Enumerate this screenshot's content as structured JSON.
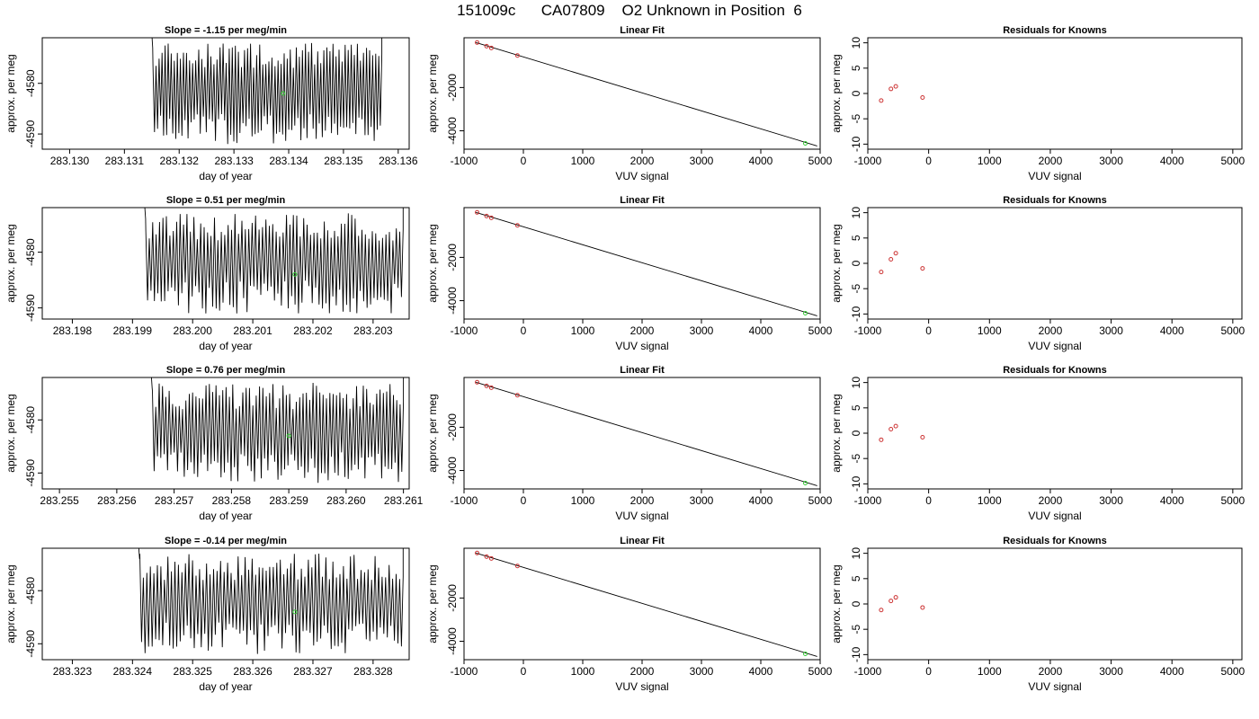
{
  "figure": {
    "title": "151009c      CA07809    O2 Unknown in Position  6"
  },
  "colors": {
    "line": "#000000",
    "known_points": "#cc3333",
    "unknown_point": "#33cc33",
    "axis": "#000000"
  },
  "chart_data": [
    {
      "type": "line",
      "panel": "time-series",
      "row": 0,
      "title": "Slope =  -1.15  per meg/min",
      "xlabel": "day of year",
      "ylabel": "approx. per meg",
      "xlim": [
        283.1295,
        283.1362
      ],
      "ylim": [
        -4593,
        -4571
      ],
      "xticks": [
        "283.130",
        "283.131",
        "283.132",
        "283.133",
        "283.134",
        "283.135",
        "283.136"
      ],
      "xtick_values": [
        283.13,
        283.131,
        283.132,
        283.133,
        283.134,
        283.135,
        283.136
      ],
      "yticks": [
        "-4580",
        "-4590"
      ],
      "ytick_values": [
        -4580,
        -4590
      ],
      "signal_x_range": [
        283.1315,
        283.1357
      ],
      "signal_range": [
        -4593,
        -4571
      ],
      "unknown_point": {
        "x": 283.1339,
        "y": -4582
      }
    },
    {
      "type": "scatter",
      "panel": "linear-fit",
      "row": 0,
      "title": "Linear Fit",
      "xlabel": "VUV signal",
      "ylabel": "approx. per meg",
      "xlim": [
        -1000,
        5000
      ],
      "ylim": [
        -4850,
        300
      ],
      "xticks": [
        "-1000",
        "0",
        "1000",
        "2000",
        "3000",
        "4000",
        "5000"
      ],
      "xtick_values": [
        -1000,
        0,
        1000,
        2000,
        3000,
        4000,
        5000
      ],
      "yticks": [
        "-2000",
        "-4000"
      ],
      "ytick_values": [
        -2000,
        -4000
      ],
      "fit_line": {
        "x": [
          -800,
          4950
        ],
        "y": [
          80,
          -4700
        ]
      },
      "knowns": {
        "x": [
          -780,
          -620,
          -540,
          -100
        ],
        "y": [
          80,
          -90,
          -170,
          -520
        ]
      },
      "unknown_point": {
        "x": 4750,
        "y": -4580
      }
    },
    {
      "type": "scatter",
      "panel": "residuals",
      "row": 0,
      "title": "Residuals for Knowns",
      "xlabel": "VUV signal",
      "ylabel": "approx. per meg",
      "xlim": [
        -1000,
        5150
      ],
      "ylim": [
        -11,
        11
      ],
      "xticks": [
        "-1000",
        "0",
        "1000",
        "2000",
        "3000",
        "4000",
        "5000"
      ],
      "xtick_values": [
        -1000,
        0,
        1000,
        2000,
        3000,
        4000,
        5000
      ],
      "yticks": [
        "10",
        "5",
        "0",
        "-5",
        "-10"
      ],
      "ytick_values": [
        10,
        5,
        0,
        -5,
        -10
      ],
      "knowns": {
        "x": [
          -780,
          -620,
          -540,
          -100
        ],
        "y": [
          -1.4,
          0.9,
          1.4,
          -0.8
        ]
      }
    },
    {
      "type": "line",
      "panel": "time-series",
      "row": 1,
      "title": "Slope =  0.51  per meg/min",
      "xlabel": "day of year",
      "ylabel": "approx. per meg",
      "xlim": [
        283.1975,
        283.2036
      ],
      "ylim": [
        -4592,
        -4572
      ],
      "xticks": [
        "283.198",
        "283.199",
        "283.200",
        "283.201",
        "283.202",
        "283.203"
      ],
      "xtick_values": [
        283.198,
        283.199,
        283.2,
        283.201,
        283.202,
        283.203
      ],
      "yticks": [
        "-4580",
        "-4590"
      ],
      "ytick_values": [
        -4580,
        -4590
      ],
      "signal_x_range": [
        283.1992,
        283.2035
      ],
      "signal_range": [
        -4592,
        -4572
      ],
      "unknown_point": {
        "x": 283.2017,
        "y": -4584
      }
    },
    {
      "type": "scatter",
      "panel": "linear-fit",
      "row": 1,
      "title": "Linear Fit",
      "xlabel": "VUV signal",
      "ylabel": "approx. per meg",
      "xlim": [
        -1000,
        5000
      ],
      "ylim": [
        -4850,
        300
      ],
      "xticks": [
        "-1000",
        "0",
        "1000",
        "2000",
        "3000",
        "4000",
        "5000"
      ],
      "xtick_values": [
        -1000,
        0,
        1000,
        2000,
        3000,
        4000,
        5000
      ],
      "yticks": [
        "-2000",
        "-4000"
      ],
      "ytick_values": [
        -2000,
        -4000
      ],
      "fit_line": {
        "x": [
          -800,
          4950
        ],
        "y": [
          80,
          -4700
        ]
      },
      "knowns": {
        "x": [
          -780,
          -620,
          -540,
          -100
        ],
        "y": [
          80,
          -90,
          -170,
          -520
        ]
      },
      "unknown_point": {
        "x": 4750,
        "y": -4580
      }
    },
    {
      "type": "scatter",
      "panel": "residuals",
      "row": 1,
      "title": "Residuals for Knowns",
      "xlabel": "VUV signal",
      "ylabel": "approx. per meg",
      "xlim": [
        -1000,
        5150
      ],
      "ylim": [
        -11,
        11
      ],
      "xticks": [
        "-1000",
        "0",
        "1000",
        "2000",
        "3000",
        "4000",
        "5000"
      ],
      "xtick_values": [
        -1000,
        0,
        1000,
        2000,
        3000,
        4000,
        5000
      ],
      "yticks": [
        "10",
        "5",
        "0",
        "-5",
        "-10"
      ],
      "ytick_values": [
        10,
        5,
        0,
        -5,
        -10
      ],
      "knowns": {
        "x": [
          -780,
          -620,
          -540,
          -100
        ],
        "y": [
          -1.7,
          0.8,
          2.0,
          -1.0
        ]
      }
    },
    {
      "type": "line",
      "panel": "time-series",
      "row": 2,
      "title": "Slope =  0.76  per meg/min",
      "xlabel": "day of year",
      "ylabel": "approx. per meg",
      "xlim": [
        283.2547,
        283.2611
      ],
      "ylim": [
        -4593,
        -4572
      ],
      "xticks": [
        "283.255",
        "283.256",
        "283.257",
        "283.258",
        "283.259",
        "283.260",
        "283.261"
      ],
      "xtick_values": [
        283.255,
        283.256,
        283.257,
        283.258,
        283.259,
        283.26,
        283.261
      ],
      "yticks": [
        "-4580",
        "-4590"
      ],
      "ytick_values": [
        -4580,
        -4590
      ],
      "signal_x_range": [
        283.2566,
        283.261
      ],
      "signal_range": [
        -4593,
        -4572
      ],
      "unknown_point": {
        "x": 283.259,
        "y": -4583
      }
    },
    {
      "type": "scatter",
      "panel": "linear-fit",
      "row": 2,
      "title": "Linear Fit",
      "xlabel": "VUV signal",
      "ylabel": "approx. per meg",
      "xlim": [
        -1000,
        5000
      ],
      "ylim": [
        -4850,
        300
      ],
      "xticks": [
        "-1000",
        "0",
        "1000",
        "2000",
        "3000",
        "4000",
        "5000"
      ],
      "xtick_values": [
        -1000,
        0,
        1000,
        2000,
        3000,
        4000,
        5000
      ],
      "yticks": [
        "-2000",
        "-4000"
      ],
      "ytick_values": [
        -2000,
        -4000
      ],
      "fit_line": {
        "x": [
          -800,
          4950
        ],
        "y": [
          80,
          -4700
        ]
      },
      "knowns": {
        "x": [
          -780,
          -620,
          -540,
          -100
        ],
        "y": [
          80,
          -90,
          -170,
          -520
        ]
      },
      "unknown_point": {
        "x": 4750,
        "y": -4580
      }
    },
    {
      "type": "scatter",
      "panel": "residuals",
      "row": 2,
      "title": "Residuals for Knowns",
      "xlabel": "VUV signal",
      "ylabel": "approx. per meg",
      "xlim": [
        -1000,
        5150
      ],
      "ylim": [
        -11,
        11
      ],
      "xticks": [
        "-1000",
        "0",
        "1000",
        "2000",
        "3000",
        "4000",
        "5000"
      ],
      "xtick_values": [
        -1000,
        0,
        1000,
        2000,
        3000,
        4000,
        5000
      ],
      "yticks": [
        "10",
        "5",
        "0",
        "-5",
        "-10"
      ],
      "ytick_values": [
        10,
        5,
        0,
        -5,
        -10
      ],
      "knowns": {
        "x": [
          -780,
          -620,
          -540,
          -100
        ],
        "y": [
          -1.3,
          0.8,
          1.4,
          -0.8
        ]
      }
    },
    {
      "type": "line",
      "panel": "time-series",
      "row": 3,
      "title": "Slope =  -0.14  per meg/min",
      "xlabel": "day of year",
      "ylabel": "approx. per meg",
      "xlim": [
        283.3225,
        283.3286
      ],
      "ylim": [
        -4593,
        -4572
      ],
      "xticks": [
        "283.323",
        "283.324",
        "283.325",
        "283.326",
        "283.327",
        "283.328"
      ],
      "xtick_values": [
        283.323,
        283.324,
        283.325,
        283.326,
        283.327,
        283.328
      ],
      "yticks": [
        "-4580",
        "-4590"
      ],
      "ytick_values": [
        -4580,
        -4590
      ],
      "signal_x_range": [
        283.3241,
        283.3285
      ],
      "signal_range": [
        -4593,
        -4572
      ],
      "unknown_point": {
        "x": 283.3267,
        "y": -4584
      }
    },
    {
      "type": "scatter",
      "panel": "linear-fit",
      "row": 3,
      "title": "Linear Fit",
      "xlabel": "VUV signal",
      "ylabel": "approx. per meg",
      "xlim": [
        -1000,
        5000
      ],
      "ylim": [
        -4850,
        300
      ],
      "xticks": [
        "-1000",
        "0",
        "1000",
        "2000",
        "3000",
        "4000",
        "5000"
      ],
      "xtick_values": [
        -1000,
        0,
        1000,
        2000,
        3000,
        4000,
        5000
      ],
      "yticks": [
        "-2000",
        "-4000"
      ],
      "ytick_values": [
        -2000,
        -4000
      ],
      "fit_line": {
        "x": [
          -800,
          4950
        ],
        "y": [
          80,
          -4700
        ]
      },
      "knowns": {
        "x": [
          -780,
          -620,
          -540,
          -100
        ],
        "y": [
          80,
          -90,
          -170,
          -520
        ]
      },
      "unknown_point": {
        "x": 4750,
        "y": -4580
      }
    },
    {
      "type": "scatter",
      "panel": "residuals",
      "row": 3,
      "title": "Residuals for Knowns",
      "xlabel": "VUV signal",
      "ylabel": "approx. per meg",
      "xlim": [
        -1000,
        5150
      ],
      "ylim": [
        -11,
        11
      ],
      "xticks": [
        "-1000",
        "0",
        "1000",
        "2000",
        "3000",
        "4000",
        "5000"
      ],
      "xtick_values": [
        -1000,
        0,
        1000,
        2000,
        3000,
        4000,
        5000
      ],
      "yticks": [
        "10",
        "5",
        "0",
        "-5",
        "-10"
      ],
      "ytick_values": [
        10,
        5,
        0,
        -5,
        -10
      ],
      "knowns": {
        "x": [
          -780,
          -620,
          -540,
          -100
        ],
        "y": [
          -1.2,
          0.6,
          1.3,
          -0.7
        ]
      }
    }
  ]
}
